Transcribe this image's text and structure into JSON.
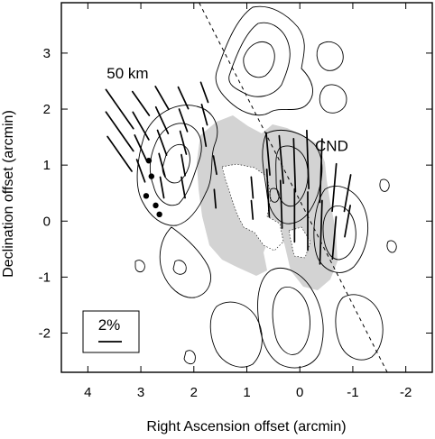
{
  "chart_data": {
    "type": "scatter",
    "title": "",
    "xlabel": "Right Ascension offset (arcmin)",
    "ylabel": "Declination offset (arcmin)",
    "xlim": [
      4.5,
      -2.5
    ],
    "ylim": [
      -2.7,
      3.9
    ],
    "x_ticks": [
      4,
      3,
      2,
      1,
      0,
      -1,
      -2
    ],
    "x_tick_labels": [
      "4",
      "3",
      "2",
      "1",
      "0",
      "-1",
      "-2"
    ],
    "y_ticks": [
      3,
      2,
      1,
      0,
      -1,
      -2
    ],
    "y_tick_labels": [
      "3",
      "2",
      "1",
      "0",
      "-1",
      "-2"
    ],
    "annotations": [
      {
        "text": "50 km",
        "x": 3.25,
        "y": 2.55
      },
      {
        "text": "CND",
        "x": -0.6,
        "y": 1.25
      }
    ],
    "legend": {
      "label": "2%",
      "placement": "bottom-left"
    },
    "grid": false,
    "dashed_line": {
      "from": [
        1.9,
        3.9
      ],
      "to": [
        -1.65,
        -2.7
      ]
    },
    "filled_points": [
      {
        "x": 2.85,
        "y": 1.08
      },
      {
        "x": 2.8,
        "y": 0.8
      },
      {
        "x": 2.9,
        "y": 0.45
      },
      {
        "x": 2.72,
        "y": 0.28
      },
      {
        "x": 2.65,
        "y": 0.12
      }
    ],
    "polarization_vectors": [
      {
        "x": 3.4,
        "y": 2.0,
        "len": 0.9,
        "angle": 125
      },
      {
        "x": 3.4,
        "y": 1.6,
        "len": 0.9,
        "angle": 125
      },
      {
        "x": 3.4,
        "y": 1.2,
        "len": 0.8,
        "angle": 125
      },
      {
        "x": 3.0,
        "y": 2.1,
        "len": 0.55,
        "angle": 125
      },
      {
        "x": 3.0,
        "y": 1.7,
        "len": 0.6,
        "angle": 120
      },
      {
        "x": 3.0,
        "y": 1.3,
        "len": 0.55,
        "angle": 115
      },
      {
        "x": 3.0,
        "y": 0.9,
        "len": 0.45,
        "angle": 110
      },
      {
        "x": 2.6,
        "y": 2.2,
        "len": 0.5,
        "angle": 120
      },
      {
        "x": 2.6,
        "y": 1.8,
        "len": 0.55,
        "angle": 115
      },
      {
        "x": 2.6,
        "y": 1.4,
        "len": 0.5,
        "angle": 110
      },
      {
        "x": 2.6,
        "y": 1.0,
        "len": 0.45,
        "angle": 105
      },
      {
        "x": 2.6,
        "y": 0.6,
        "len": 0.4,
        "angle": 100
      },
      {
        "x": 2.2,
        "y": 2.2,
        "len": 0.45,
        "angle": 115
      },
      {
        "x": 2.2,
        "y": 1.8,
        "len": 0.45,
        "angle": 110
      },
      {
        "x": 2.2,
        "y": 1.4,
        "len": 0.45,
        "angle": 105
      },
      {
        "x": 2.2,
        "y": 1.0,
        "len": 0.4,
        "angle": 100
      },
      {
        "x": 2.2,
        "y": 0.6,
        "len": 0.4,
        "angle": 100
      },
      {
        "x": 1.8,
        "y": 2.3,
        "len": 0.4,
        "angle": 110
      },
      {
        "x": 1.8,
        "y": 1.9,
        "len": 0.4,
        "angle": 105
      },
      {
        "x": 1.8,
        "y": 1.5,
        "len": 0.35,
        "angle": 100
      },
      {
        "x": 0.9,
        "y": 0.6,
        "len": 0.4,
        "angle": 95
      },
      {
        "x": 0.9,
        "y": 0.2,
        "len": 0.35,
        "angle": 95
      },
      {
        "x": 0.6,
        "y": 1.2,
        "len": 0.8,
        "angle": 95
      },
      {
        "x": 0.6,
        "y": 0.5,
        "len": 0.9,
        "angle": 93
      },
      {
        "x": 0.35,
        "y": 1.1,
        "len": 0.9,
        "angle": 95
      },
      {
        "x": 0.35,
        "y": 0.3,
        "len": 0.9,
        "angle": 92
      },
      {
        "x": 0.1,
        "y": 1.0,
        "len": 1.0,
        "angle": 92
      },
      {
        "x": 0.1,
        "y": 0.1,
        "len": 1.0,
        "angle": 90
      },
      {
        "x": -0.15,
        "y": 1.1,
        "len": 1.1,
        "angle": 92
      },
      {
        "x": -0.15,
        "y": 0.0,
        "len": 1.1,
        "angle": 90
      },
      {
        "x": -0.4,
        "y": 0.9,
        "len": 1.2,
        "angle": 88
      },
      {
        "x": -0.4,
        "y": -0.2,
        "len": 1.2,
        "angle": 88
      },
      {
        "x": -0.65,
        "y": 0.6,
        "len": 0.9,
        "angle": 85
      },
      {
        "x": -0.65,
        "y": -0.3,
        "len": 0.8,
        "angle": 85
      },
      {
        "x": -0.9,
        "y": 0.5,
        "len": 0.7,
        "angle": 80
      },
      {
        "x": -0.9,
        "y": 0.0,
        "len": 0.6,
        "angle": 80
      },
      {
        "x": 1.6,
        "y": 1.0,
        "len": 0.35,
        "angle": 100
      },
      {
        "x": 1.6,
        "y": 0.4,
        "len": 0.35,
        "angle": 95
      }
    ]
  }
}
